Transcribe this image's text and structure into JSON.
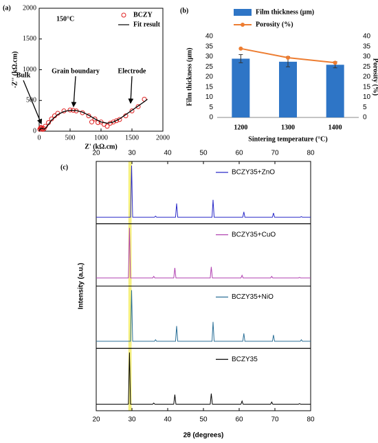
{
  "chart_data": [
    {
      "type": "scatter",
      "title": "(a)",
      "annotations": [
        "150°C",
        "Bulk",
        "Grain boundary",
        "Electrode"
      ],
      "x_label": "Z' (kΩ.cm)",
      "y_label": "-Z'' (kΩ.cm)",
      "xlim": [
        0,
        2000
      ],
      "xticks": [
        0,
        500,
        1000,
        1500,
        2000
      ],
      "ylim": [
        0,
        2000
      ],
      "yticks": [
        0,
        500,
        1000,
        1500,
        2000
      ],
      "series": [
        {
          "name": "BCZY",
          "mode": "markers",
          "color": "#e02020",
          "x": [
            10,
            20,
            30,
            40,
            50,
            60,
            80,
            100,
            150,
            200,
            250,
            300,
            400,
            500,
            550,
            600,
            700,
            800,
            850,
            900,
            950,
            1000,
            1050,
            1100,
            1150,
            1200,
            1250,
            1300,
            1400,
            1500,
            1600,
            1700
          ],
          "values": [
            30,
            50,
            60,
            55,
            40,
            30,
            40,
            80,
            140,
            200,
            250,
            290,
            330,
            345,
            340,
            330,
            300,
            250,
            150,
            200,
            140,
            150,
            110,
            80,
            130,
            150,
            170,
            190,
            250,
            330,
            400,
            520
          ]
        },
        {
          "name": "Fit result",
          "mode": "line",
          "color": "#000000",
          "x": [
            0,
            20,
            40,
            60,
            80,
            100,
            150,
            200,
            300,
            400,
            500,
            600,
            700,
            800,
            900,
            1000,
            1100,
            1200,
            1300,
            1400,
            1500,
            1600,
            1700,
            1750
          ],
          "values": [
            0,
            40,
            50,
            40,
            30,
            45,
            110,
            180,
            270,
            320,
            340,
            335,
            310,
            260,
            200,
            150,
            130,
            150,
            200,
            270,
            340,
            410,
            480,
            520
          ]
        }
      ]
    },
    {
      "type": "bar",
      "title": "(b)",
      "x_label": "Sintering temperature (°C)",
      "y_label": "Film thickness (μm)",
      "y2_label": "Porosity (%)",
      "categories": [
        "1200",
        "1300",
        "1400"
      ],
      "ylim": [
        0,
        40
      ],
      "yticks": [
        0,
        5,
        10,
        15,
        20,
        25,
        30,
        35,
        40
      ],
      "y2lim": [
        0,
        40
      ],
      "y2ticks": [
        0,
        5,
        10,
        15,
        20,
        25,
        30,
        35,
        40
      ],
      "series": [
        {
          "name": "Film thickness (μm)",
          "color": "#2e75c6",
          "values": [
            29,
            27.5,
            26
          ],
          "errors": [
            2,
            2.5,
            1.5
          ]
        },
        {
          "name": "Porosity (%)",
          "color": "#ed7d31",
          "axis": "y2",
          "values": [
            34,
            29.5,
            27
          ]
        }
      ]
    },
    {
      "type": "line",
      "title": "(c)",
      "x_label": "2θ (degrees)",
      "y_label": "Intensity (a.u.)",
      "xlim": [
        20,
        80
      ],
      "xticks": [
        20,
        30,
        40,
        50,
        60,
        70,
        80
      ],
      "ylim": [
        0,
        100
      ],
      "highlight": [
        29.0,
        29.9
      ],
      "highlight_color": "#f2ec60",
      "series": [
        {
          "name": "BCZY35+ZnO",
          "color": "#2a2ac8",
          "x": [
            20,
            29.6,
            29.9,
            30.2,
            36.3,
            36.6,
            36.9,
            42.2,
            42.5,
            42.8,
            52.4,
            52.7,
            53.0,
            61.0,
            61.3,
            61.6,
            69.3,
            69.6,
            69.9,
            77.1,
            77.4,
            77.7,
            80
          ],
          "values": [
            2,
            2,
            100,
            2,
            2,
            4,
            2,
            2,
            28,
            2,
            2,
            35,
            2,
            2,
            12,
            2,
            2,
            10,
            2,
            2,
            3,
            2,
            2
          ]
        },
        {
          "name": "BCZY35+CuO",
          "color": "#b040b0",
          "x": [
            20,
            29.0,
            29.3,
            29.6,
            35.8,
            36.1,
            36.4,
            41.7,
            42.0,
            42.3,
            51.9,
            52.2,
            52.5,
            60.5,
            60.8,
            61.1,
            68.8,
            69.1,
            69.4,
            76.6,
            76.9,
            77.2,
            80
          ],
          "values": [
            5,
            5,
            100,
            5,
            5,
            8,
            5,
            5,
            24,
            5,
            5,
            26,
            5,
            5,
            10,
            5,
            5,
            8,
            5,
            5,
            6,
            5,
            5
          ]
        },
        {
          "name": "BCZY35+NiO",
          "color": "#2a6f97",
          "x": [
            20,
            29.6,
            29.9,
            30.2,
            36.3,
            36.6,
            36.9,
            42.2,
            42.5,
            42.8,
            52.4,
            52.7,
            53.0,
            61.0,
            61.3,
            61.6,
            69.3,
            69.6,
            69.9,
            77.1,
            77.4,
            77.7,
            80
          ],
          "values": [
            3,
            3,
            100,
            3,
            3,
            6,
            3,
            3,
            32,
            3,
            3,
            40,
            3,
            3,
            18,
            3,
            3,
            15,
            3,
            3,
            6,
            3,
            3
          ]
        },
        {
          "name": "BCZY35",
          "color": "#000000",
          "x": [
            20,
            29.0,
            29.3,
            29.6,
            35.8,
            36.1,
            36.4,
            41.7,
            42.0,
            42.3,
            51.9,
            52.2,
            52.5,
            60.5,
            60.8,
            61.1,
            68.8,
            69.1,
            69.4,
            76.6,
            76.9,
            77.2,
            80
          ],
          "values": [
            2,
            2,
            100,
            2,
            2,
            4,
            2,
            2,
            20,
            2,
            2,
            22,
            2,
            2,
            8,
            2,
            2,
            6,
            2,
            2,
            3,
            2,
            2
          ]
        }
      ]
    }
  ]
}
